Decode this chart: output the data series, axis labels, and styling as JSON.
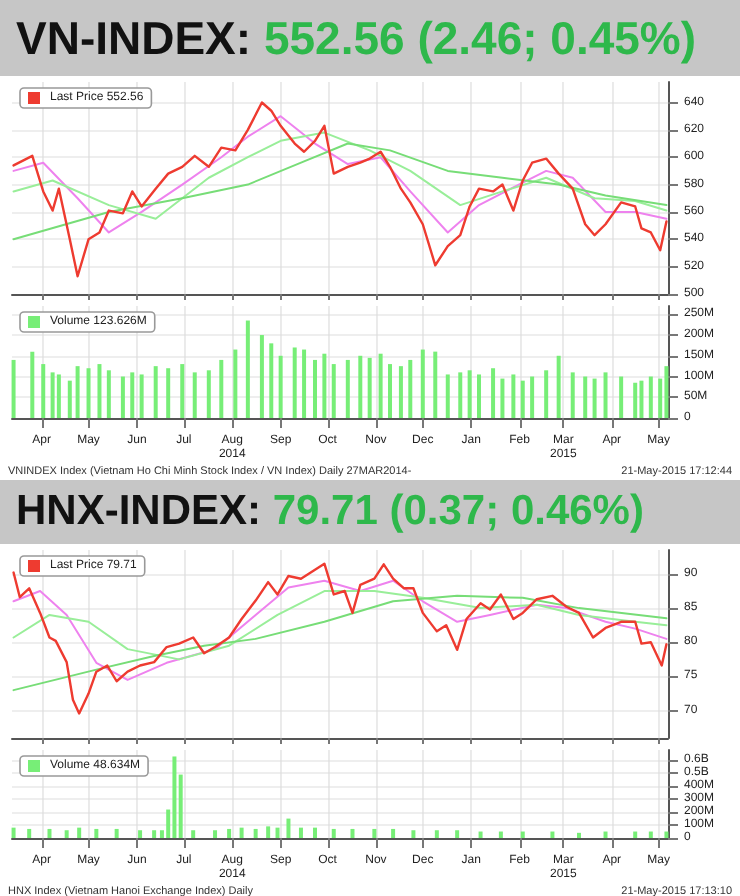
{
  "chart_data": [
    {
      "type": "line",
      "title": "VN-INDEX:",
      "subtitle": "552.56 (2.46; 0.45%)",
      "xlim": [
        "2014-03-27",
        "2015-05-21"
      ],
      "ylim": [
        500,
        655
      ],
      "yticks": [
        500,
        520,
        540,
        560,
        580,
        600,
        620,
        640
      ],
      "xticks": [
        {
          "value": "2014-04-15",
          "label": null
        },
        {
          "value": "2014-05-15",
          "label": null
        },
        {
          "value": "2014-06-15",
          "label": null
        },
        {
          "value": "2014-07-15",
          "label": null
        },
        {
          "value": "2014-08-15",
          "label": null
        },
        {
          "value": "2014-09-15",
          "label": null
        },
        {
          "value": "2014-10-15",
          "label": null
        },
        {
          "value": "2014-11-15",
          "label": null
        },
        {
          "value": "2014-12-15",
          "label": null
        },
        {
          "value": "2015-01-15",
          "label": null
        },
        {
          "value": "2015-02-15",
          "label": null
        },
        {
          "value": "2015-03-15",
          "label": null
        },
        {
          "value": "2015-04-15",
          "label": null
        },
        {
          "value": "2015-05-15",
          "label": null
        }
      ],
      "tick_labels": "y",
      "grid": true,
      "legend": "top left",
      "marker": "none",
      "line_style": "solid",
      "x": [
        "2014-03-28",
        "2014-04-09",
        "2014-04-16",
        "2014-04-22",
        "2014-04-26",
        "2014-05-03",
        "2014-05-08",
        "2014-05-15",
        "2014-05-22",
        "2014-05-28",
        "2014-06-06",
        "2014-06-12",
        "2014-06-18",
        "2014-06-27",
        "2014-07-05",
        "2014-07-14",
        "2014-07-22",
        "2014-07-31",
        "2014-08-08",
        "2014-08-17",
        "2014-08-25",
        "2014-09-03",
        "2014-09-09",
        "2014-09-15",
        "2014-09-24",
        "2014-09-30",
        "2014-10-07",
        "2014-10-13",
        "2014-10-19",
        "2014-10-28",
        "2014-11-05",
        "2014-11-11",
        "2014-11-18",
        "2014-11-24",
        "2014-12-01",
        "2014-12-07",
        "2014-12-15",
        "2014-12-23",
        "2014-12-31",
        "2015-01-08",
        "2015-01-14",
        "2015-01-20",
        "2015-01-29",
        "2015-02-04",
        "2015-02-11",
        "2015-02-17",
        "2015-02-23",
        "2015-03-04",
        "2015-03-12",
        "2015-03-21",
        "2015-03-29",
        "2015-04-04",
        "2015-04-11",
        "2015-04-21",
        "2015-04-30",
        "2015-05-04",
        "2015-05-10",
        "2015-05-16",
        "2015-05-20"
      ],
      "series": [
        {
          "x": [
            "2014-03-28",
            "2014-04-16",
            "2014-05-08",
            "2014-05-28",
            "2014-06-18",
            "2014-07-14",
            "2014-08-08",
            "2014-08-25",
            "2014-09-15",
            "2014-10-07",
            "2014-10-28",
            "2014-11-18",
            "2014-12-07",
            "2014-12-31",
            "2015-01-20",
            "2015-02-11",
            "2015-03-04",
            "2015-03-21",
            "2015-04-11",
            "2015-04-30",
            "2015-05-20"
          ],
          "color": "#ee82ee",
          "values": [
            590,
            596,
            570,
            545,
            560,
            580,
            600,
            615,
            630,
            610,
            595,
            600,
            575,
            545,
            565,
            578,
            590,
            585,
            560,
            560,
            555
          ]
        },
        {
          "x": [
            "2014-03-28",
            "2014-04-22",
            "2014-05-28",
            "2014-06-27",
            "2014-07-31",
            "2014-08-25",
            "2014-09-15",
            "2014-10-13",
            "2014-11-11",
            "2014-12-07",
            "2015-01-08",
            "2015-02-04",
            "2015-03-04",
            "2015-04-04",
            "2015-04-30",
            "2015-05-20"
          ],
          "color": "#99ee99",
          "values": [
            575,
            583,
            565,
            555,
            585,
            600,
            612,
            618,
            605,
            590,
            565,
            575,
            585,
            570,
            568,
            561
          ]
        },
        {
          "x": [
            "2014-03-28",
            "2014-05-28",
            "2014-07-14",
            "2014-08-25",
            "2014-09-30",
            "2014-10-28",
            "2014-11-24",
            "2014-12-31",
            "2015-02-04",
            "2015-03-12",
            "2015-04-11",
            "2015-05-20"
          ],
          "color": "#77dd77",
          "values": [
            540,
            560,
            570,
            580,
            597,
            610,
            605,
            590,
            585,
            580,
            572,
            565
          ]
        },
        {
          "name": "Last Price 552.56",
          "color": "#ee3b30",
          "values": [
            594,
            601,
            575,
            561,
            577,
            540,
            513,
            540,
            545,
            561,
            559,
            575,
            564,
            577,
            588,
            593,
            601,
            593,
            607,
            605,
            620,
            640,
            634,
            623,
            610,
            604,
            612,
            623,
            588,
            593,
            596,
            599,
            604,
            593,
            577,
            567,
            551,
            521,
            535,
            543,
            564,
            577,
            575,
            580,
            561,
            583,
            596,
            599,
            588,
            577,
            551,
            543,
            551,
            567,
            564,
            548,
            545,
            532,
            553
          ]
        }
      ]
    },
    {
      "type": "bar",
      "xlim": [
        "2014-03-27",
        "2015-05-21"
      ],
      "ylim": [
        0,
        270000000
      ],
      "yticks": [
        0,
        {
          "value": 50000000,
          "label": "50M"
        },
        {
          "value": 100000000,
          "label": "100M"
        },
        {
          "value": 150000000,
          "label": "150M"
        },
        {
          "value": 200000000,
          "label": "200M"
        },
        {
          "value": 250000000,
          "label": "250M"
        }
      ],
      "xticks": [
        {
          "value": "2014-04-15",
          "label": "Apr"
        },
        {
          "value": "2014-05-15",
          "label": "May"
        },
        {
          "value": "2014-06-15",
          "label": "Jun"
        },
        {
          "value": "2014-07-15",
          "label": "Jul"
        },
        {
          "value": "2014-08-15",
          "label": "Aug\n2014"
        },
        {
          "value": "2014-09-15",
          "label": "Sep"
        },
        {
          "value": "2014-10-15",
          "label": "Oct"
        },
        {
          "value": "2014-11-15",
          "label": "Nov"
        },
        {
          "value": "2014-12-15",
          "label": "Dec"
        },
        {
          "value": "2015-01-15",
          "label": "Jan"
        },
        {
          "value": "2015-02-15",
          "label": "Feb"
        },
        {
          "value": "2015-03-15",
          "label": "Mar\n2015"
        },
        {
          "value": "2015-04-15",
          "label": "Apr"
        },
        {
          "value": "2015-05-15",
          "label": "May"
        }
      ],
      "grid": true,
      "legend": "top left",
      "annotations": [
        "VNINDEX Index (Vietnam Ho Chi Minh Stock Index / VN Index) Daily 27MAR2014-",
        "21-May-2015 17:12:44"
      ],
      "x": [
        "2014-03-28",
        "2014-04-09",
        "2014-04-16",
        "2014-04-22",
        "2014-04-26",
        "2014-05-03",
        "2014-05-08",
        "2014-05-15",
        "2014-05-22",
        "2014-05-28",
        "2014-06-06",
        "2014-06-12",
        "2014-06-18",
        "2014-06-27",
        "2014-07-05",
        "2014-07-14",
        "2014-07-22",
        "2014-07-31",
        "2014-08-08",
        "2014-08-17",
        "2014-08-25",
        "2014-09-03",
        "2014-09-09",
        "2014-09-15",
        "2014-09-24",
        "2014-09-30",
        "2014-10-07",
        "2014-10-13",
        "2014-10-19",
        "2014-10-28",
        "2014-11-05",
        "2014-11-11",
        "2014-11-18",
        "2014-11-24",
        "2014-12-01",
        "2014-12-07",
        "2014-12-15",
        "2014-12-23",
        "2014-12-31",
        "2015-01-08",
        "2015-01-14",
        "2015-01-20",
        "2015-01-29",
        "2015-02-04",
        "2015-02-11",
        "2015-02-17",
        "2015-02-23",
        "2015-03-04",
        "2015-03-12",
        "2015-03-21",
        "2015-03-29",
        "2015-04-04",
        "2015-04-11",
        "2015-04-21",
        "2015-04-30",
        "2015-05-04",
        "2015-05-10",
        "2015-05-16",
        "2015-05-20"
      ],
      "series": [
        {
          "name": "Volume 123.626M",
          "color": "#77ee77",
          "values": [
            140000000,
            160000000,
            130000000,
            110000000,
            105000000,
            90000000,
            125000000,
            120000000,
            130000000,
            115000000,
            100000000,
            110000000,
            105000000,
            125000000,
            120000000,
            130000000,
            110000000,
            115000000,
            140000000,
            165000000,
            235000000,
            200000000,
            180000000,
            150000000,
            170000000,
            165000000,
            140000000,
            155000000,
            130000000,
            140000000,
            150000000,
            145000000,
            155000000,
            130000000,
            125000000,
            140000000,
            165000000,
            160000000,
            105000000,
            110000000,
            115000000,
            105000000,
            120000000,
            95000000,
            105000000,
            90000000,
            100000000,
            115000000,
            150000000,
            110000000,
            100000000,
            95000000,
            110000000,
            100000000,
            85000000,
            90000000,
            100000000,
            95000000,
            125000000
          ]
        }
      ]
    },
    {
      "type": "line",
      "title": "HNX-INDEX:",
      "subtitle": "79.71 (0.37; 0.46%)",
      "xlim": [
        "2014-03-27",
        "2015-05-21"
      ],
      "ylim": [
        66,
        93.5
      ],
      "yticks": [
        70,
        75,
        80,
        85,
        90
      ],
      "xticks": [
        {
          "value": "2014-04-15",
          "label": null
        },
        {
          "value": "2014-05-15",
          "label": null
        },
        {
          "value": "2014-06-15",
          "label": null
        },
        {
          "value": "2014-07-15",
          "label": null
        },
        {
          "value": "2014-08-15",
          "label": null
        },
        {
          "value": "2014-09-15",
          "label": null
        },
        {
          "value": "2014-10-15",
          "label": null
        },
        {
          "value": "2014-11-15",
          "label": null
        },
        {
          "value": "2014-12-15",
          "label": null
        },
        {
          "value": "2015-01-15",
          "label": null
        },
        {
          "value": "2015-02-15",
          "label": null
        },
        {
          "value": "2015-03-15",
          "label": null
        },
        {
          "value": "2015-04-15",
          "label": null
        },
        {
          "value": "2015-05-15",
          "label": null
        }
      ],
      "tick_labels": "y",
      "grid": true,
      "legend": "top left",
      "marker": "none",
      "line_style": "solid",
      "x": [
        "2014-03-28",
        "2014-04-01",
        "2014-04-07",
        "2014-04-14",
        "2014-04-20",
        "2014-04-24",
        "2014-05-01",
        "2014-05-05",
        "2014-05-09",
        "2014-05-15",
        "2014-05-20",
        "2014-05-27",
        "2014-06-02",
        "2014-06-09",
        "2014-06-17",
        "2014-06-26",
        "2014-07-04",
        "2014-07-12",
        "2014-07-21",
        "2014-07-28",
        "2014-08-04",
        "2014-08-13",
        "2014-08-21",
        "2014-08-30",
        "2014-09-07",
        "2014-09-13",
        "2014-09-20",
        "2014-09-28",
        "2014-10-07",
        "2014-10-13",
        "2014-10-19",
        "2014-10-26",
        "2014-10-31",
        "2014-11-05",
        "2014-11-14",
        "2014-11-20",
        "2014-11-26",
        "2014-12-03",
        "2014-12-09",
        "2014-12-15",
        "2014-12-24",
        "2014-12-30",
        "2015-01-06",
        "2015-01-12",
        "2015-01-21",
        "2015-01-27",
        "2015-02-03",
        "2015-02-11",
        "2015-02-17",
        "2015-02-26",
        "2015-03-08",
        "2015-03-17",
        "2015-03-25",
        "2015-04-03",
        "2015-04-11",
        "2015-04-21",
        "2015-04-30",
        "2015-05-04",
        "2015-05-10",
        "2015-05-17",
        "2015-05-20"
      ],
      "series": [
        {
          "x": [
            "2014-03-28",
            "2014-04-14",
            "2014-05-01",
            "2014-05-20",
            "2014-06-09",
            "2014-07-04",
            "2014-08-04",
            "2014-08-30",
            "2014-09-20",
            "2014-10-13",
            "2014-11-05",
            "2014-11-26",
            "2014-12-15",
            "2015-01-06",
            "2015-01-27",
            "2015-02-26",
            "2015-03-17",
            "2015-04-11",
            "2015-04-30",
            "2015-05-20"
          ],
          "color": "#ee82ee",
          "values": [
            86,
            87.5,
            84,
            77,
            74.5,
            77,
            79,
            84,
            88,
            89,
            87.5,
            89,
            86,
            83,
            84,
            85.5,
            85,
            83,
            82,
            80.5
          ]
        },
        {
          "x": [
            "2014-03-28",
            "2014-04-20",
            "2014-05-15",
            "2014-06-09",
            "2014-07-12",
            "2014-08-13",
            "2014-09-13",
            "2014-10-13",
            "2014-11-14",
            "2014-12-15",
            "2015-01-21",
            "2015-02-26",
            "2015-03-25",
            "2015-04-30",
            "2015-05-20"
          ],
          "color": "#99ee99",
          "values": [
            80.7,
            84,
            83,
            79,
            77.5,
            79.5,
            84,
            87.5,
            87.5,
            86.5,
            85,
            85.5,
            84,
            83,
            82.5
          ]
        },
        {
          "x": [
            "2014-03-28",
            "2014-05-20",
            "2014-06-26",
            "2014-07-28",
            "2014-08-30",
            "2014-10-13",
            "2014-11-26",
            "2015-01-06",
            "2015-02-17",
            "2015-03-25",
            "2015-05-20"
          ],
          "color": "#77dd77",
          "values": [
            73,
            76,
            78,
            79.5,
            80.5,
            83,
            86,
            86.8,
            86.5,
            85,
            83.5
          ]
        },
        {
          "name": "Last Price 79.71",
          "color": "#ee3b30",
          "values": [
            90.2,
            86.6,
            87.9,
            84.3,
            80.7,
            80.2,
            77.1,
            71.6,
            69.6,
            72.5,
            75.7,
            76.6,
            74.3,
            75.7,
            76.6,
            77.1,
            79.3,
            79.8,
            80.7,
            78.4,
            79.3,
            80.7,
            83.4,
            86.1,
            88.8,
            87.0,
            89.7,
            89.3,
            90.6,
            91.5,
            87.0,
            87.5,
            84.3,
            88.4,
            89.3,
            91.4,
            89.3,
            87.9,
            87.9,
            84.3,
            81.6,
            82.5,
            78.9,
            83.4,
            85.7,
            84.8,
            87.0,
            83.4,
            84.3,
            86.3,
            86.8,
            85.2,
            84.3,
            80.7,
            82.1,
            83.0,
            83.0,
            79.8,
            80.0,
            76.6,
            79.7
          ]
        }
      ]
    },
    {
      "type": "bar",
      "xlim": [
        "2014-03-27",
        "2015-05-21"
      ],
      "ylim": [
        0,
        680000000
      ],
      "yticks": [
        0,
        {
          "value": 100000000,
          "label": "100M"
        },
        {
          "value": 200000000,
          "label": "200M"
        },
        {
          "value": 300000000,
          "label": "300M"
        },
        {
          "value": 400000000,
          "label": "400M"
        },
        {
          "value": 500000000,
          "label": "0.5B"
        },
        {
          "value": 600000000,
          "label": "0.6B"
        }
      ],
      "xticks": [
        {
          "value": "2014-04-15",
          "label": "Apr"
        },
        {
          "value": "2014-05-15",
          "label": "May"
        },
        {
          "value": "2014-06-15",
          "label": "Jun"
        },
        {
          "value": "2014-07-15",
          "label": "Jul"
        },
        {
          "value": "2014-08-15",
          "label": "Aug\n2014"
        },
        {
          "value": "2014-09-15",
          "label": "Sep"
        },
        {
          "value": "2014-10-15",
          "label": "Oct"
        },
        {
          "value": "2014-11-15",
          "label": "Nov"
        },
        {
          "value": "2014-12-15",
          "label": "Dec"
        },
        {
          "value": "2015-01-15",
          "label": "Jan"
        },
        {
          "value": "2015-02-15",
          "label": "Feb"
        },
        {
          "value": "2015-03-15",
          "label": "Mar\n2015"
        },
        {
          "value": "2015-04-15",
          "label": "Apr"
        },
        {
          "value": "2015-05-15",
          "label": "May"
        }
      ],
      "grid": true,
      "legend": "top left",
      "annotations": [
        "HNX Index (Vietnam Hanoi Exchange Index) Daily",
        "21-May-2015 17:13:10"
      ],
      "x": [
        "2014-03-28",
        "2014-04-07",
        "2014-04-20",
        "2014-05-01",
        "2014-05-09",
        "2014-05-20",
        "2014-06-02",
        "2014-06-17",
        "2014-06-26",
        "2014-07-01",
        "2014-07-05",
        "2014-07-09",
        "2014-07-13",
        "2014-07-21",
        "2014-08-04",
        "2014-08-13",
        "2014-08-21",
        "2014-08-30",
        "2014-09-07",
        "2014-09-13",
        "2014-09-20",
        "2014-09-28",
        "2014-10-07",
        "2014-10-19",
        "2014-10-31",
        "2014-11-14",
        "2014-11-26",
        "2014-12-09",
        "2014-12-24",
        "2015-01-06",
        "2015-01-21",
        "2015-02-03",
        "2015-02-17",
        "2015-03-08",
        "2015-03-25",
        "2015-04-11",
        "2015-04-30",
        "2015-05-10",
        "2015-05-20"
      ],
      "series": [
        {
          "name": "Volume 48.634M",
          "color": "#77ee77",
          "values": [
            80000000,
            70000000,
            70000000,
            60000000,
            80000000,
            70000000,
            70000000,
            60000000,
            60000000,
            60000000,
            220000000,
            630000000,
            490000000,
            60000000,
            60000000,
            70000000,
            80000000,
            70000000,
            90000000,
            80000000,
            150000000,
            80000000,
            80000000,
            70000000,
            70000000,
            70000000,
            70000000,
            60000000,
            60000000,
            60000000,
            50000000,
            50000000,
            50000000,
            50000000,
            40000000,
            50000000,
            50000000,
            50000000,
            50000000
          ]
        }
      ]
    }
  ]
}
